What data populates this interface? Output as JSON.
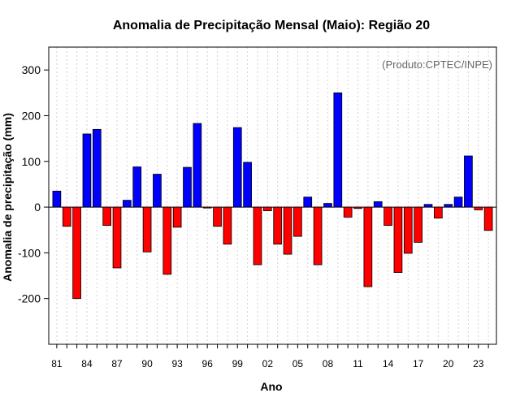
{
  "chart_data": {
    "type": "bar",
    "title": "Anomalia de Precipitação Mensal (Maio): Região 20",
    "xlabel": "Ano",
    "ylabel": "Anomalia de precipitação (mm)",
    "annotation": "(Produto:CPTEC/INPE)",
    "ylim": [
      -300,
      350
    ],
    "yticks": [
      -200,
      -100,
      0,
      100,
      200,
      300
    ],
    "grid": "vertical-dotted",
    "colors": {
      "positive": "#0000ff",
      "negative": "#ff0000",
      "edge": "#000000",
      "zero_line": "#000000",
      "grid": "#d3d3d3",
      "annotation": "#666666"
    },
    "tick_labels": [
      "81",
      "84",
      "87",
      "90",
      "93",
      "96",
      "99",
      "02",
      "05",
      "08",
      "11",
      "14",
      "17",
      "20",
      "23"
    ],
    "categories": [
      "81",
      "82",
      "83",
      "84",
      "85",
      "86",
      "87",
      "88",
      "89",
      "90",
      "91",
      "92",
      "93",
      "94",
      "95",
      "96",
      "97",
      "98",
      "99",
      "00",
      "01",
      "02",
      "03",
      "04",
      "05",
      "06",
      "07",
      "08",
      "09",
      "10",
      "11",
      "12",
      "13",
      "14",
      "15",
      "16",
      "17",
      "18",
      "19",
      "20",
      "21",
      "22",
      "23",
      "24"
    ],
    "values": [
      35,
      -42,
      -200,
      160,
      170,
      -40,
      -133,
      15,
      88,
      -98,
      72,
      -147,
      -44,
      87,
      183,
      -2,
      -42,
      -81,
      174,
      98,
      -126,
      -8,
      -81,
      -103,
      -64,
      22,
      -126,
      8,
      250,
      -22,
      -3,
      -174,
      12,
      -40,
      -143,
      -101,
      -77,
      6,
      -24,
      6,
      22,
      112,
      -6,
      -51
    ]
  }
}
